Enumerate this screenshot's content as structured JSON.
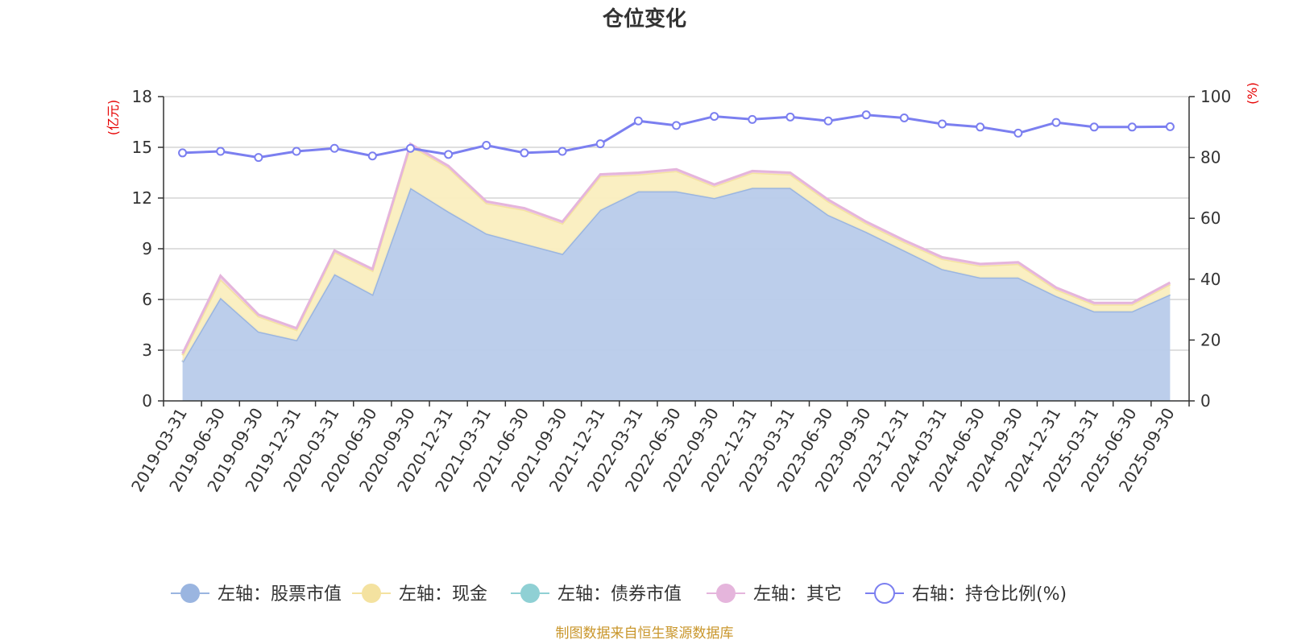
{
  "chart_data": {
    "type": "area",
    "title": "仓位变化",
    "left_axis_unit": "(亿元)",
    "right_axis_unit": "(%)",
    "left_ylim": [
      0,
      18
    ],
    "left_ticks": [
      0,
      3,
      6,
      9,
      12,
      15,
      18
    ],
    "right_ylim": [
      0,
      100
    ],
    "right_ticks": [
      0,
      20,
      40,
      60,
      80,
      100
    ],
    "grid": true,
    "legend_position": "bottom",
    "categories": [
      "2019-03-31",
      "2019-06-30",
      "2019-09-30",
      "2019-12-31",
      "2020-03-31",
      "2020-06-30",
      "2020-09-30",
      "2020-12-31",
      "2021-03-31",
      "2021-06-30",
      "2021-09-30",
      "2021-12-31",
      "2022-03-31",
      "2022-06-30",
      "2022-09-30",
      "2022-12-31",
      "2023-03-31",
      "2023-06-30",
      "2023-09-30",
      "2023-12-31",
      "2024-03-31",
      "2024-06-30",
      "2024-09-30",
      "2024-12-31",
      "2025-03-31",
      "2025-06-30",
      "2025-09-30"
    ],
    "series": [
      {
        "name": "左轴：股票市值",
        "axis": "left",
        "color": "#9ab5e0",
        "fill": "#b8cbea",
        "values": [
          2.3,
          6.1,
          4.1,
          3.6,
          7.5,
          6.3,
          12.6,
          11.2,
          9.9,
          9.3,
          8.7,
          11.3,
          12.4,
          12.4,
          12.0,
          12.6,
          12.6,
          11.0,
          10.0,
          8.9,
          7.8,
          7.3,
          7.3,
          6.2,
          5.3,
          5.3,
          6.3
        ]
      },
      {
        "name": "左轴：现金",
        "axis": "left",
        "color": "#f4e2a0",
        "fill": "#faeebf",
        "values": [
          0.4,
          1.1,
          0.9,
          0.6,
          1.3,
          1.4,
          2.5,
          2.6,
          1.8,
          2.0,
          1.8,
          2.0,
          1.0,
          1.2,
          0.7,
          0.9,
          0.8,
          0.8,
          0.5,
          0.5,
          0.6,
          0.7,
          0.8,
          0.4,
          0.4,
          0.4,
          0.6
        ]
      },
      {
        "name": "左轴：债券市值",
        "axis": "left",
        "color": "#8fd0d4",
        "fill": "#b3e1e3",
        "values": [
          0,
          0,
          0,
          0,
          0,
          0,
          0,
          0,
          0,
          0,
          0,
          0,
          0,
          0,
          0,
          0,
          0,
          0,
          0,
          0,
          0,
          0,
          0,
          0,
          0,
          0,
          0
        ]
      },
      {
        "name": "左轴：其它",
        "axis": "left",
        "color": "#e5b5dc",
        "fill": "#f0cfe9",
        "values": [
          0.1,
          0.2,
          0.1,
          0.1,
          0.1,
          0.1,
          0.1,
          0.1,
          0.1,
          0.1,
          0.1,
          0.1,
          0.1,
          0.1,
          0.1,
          0.1,
          0.1,
          0.1,
          0.1,
          0.1,
          0.1,
          0.1,
          0.1,
          0.1,
          0.1,
          0.1,
          0.1
        ]
      },
      {
        "name": "右轴：持仓比例(%)",
        "axis": "right",
        "type": "line",
        "color": "#7b7ff0",
        "values": [
          81.5,
          82,
          80,
          82,
          83,
          80.5,
          83,
          81,
          84,
          81.5,
          82,
          84.5,
          92,
          90.5,
          93.5,
          92.5,
          93.3,
          92,
          94,
          93,
          91,
          90,
          88,
          91.5,
          90,
          90,
          90.1
        ]
      }
    ],
    "source_note": "制图数据来自恒生聚源数据库"
  }
}
